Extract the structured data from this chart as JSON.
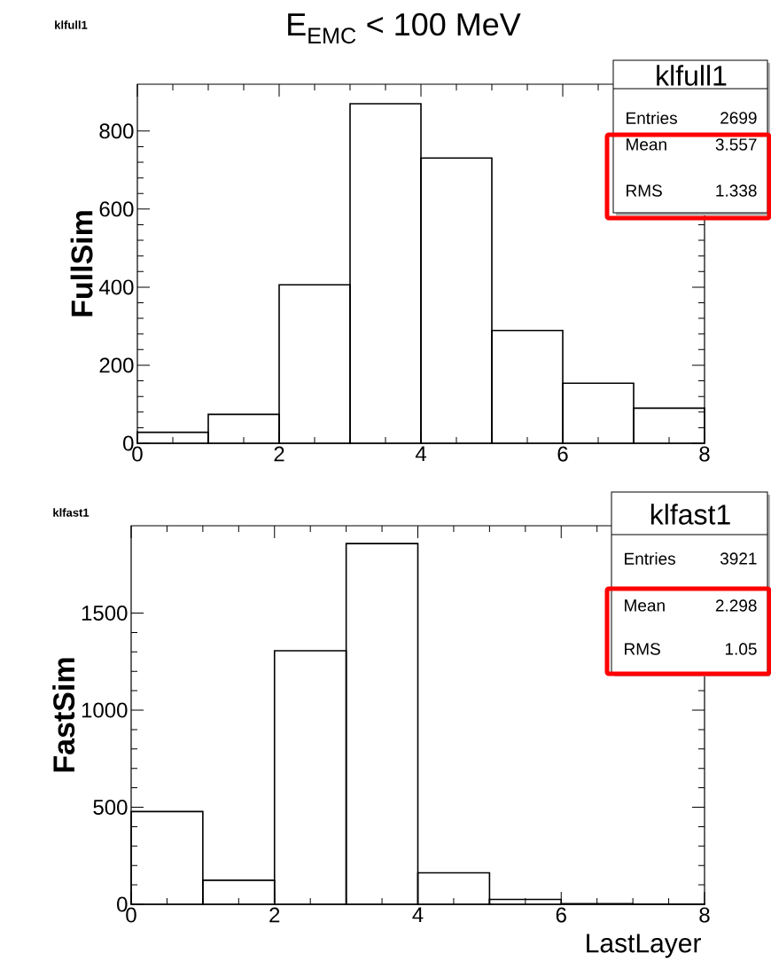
{
  "chart_data": [
    {
      "type": "histogram",
      "title": "E$_{EMC}$ < 100 MeV",
      "ylabel": "FullSim",
      "bins": [
        0,
        1,
        2,
        3,
        4,
        5,
        6,
        7,
        8
      ],
      "values": [
        28,
        74,
        406,
        870,
        731,
        289,
        154,
        90
      ],
      "color": "#000000",
      "xlim": [
        0,
        8
      ],
      "xticks": [
        0,
        2,
        4,
        6,
        8
      ],
      "ylim": [
        0,
        920
      ],
      "yticks": [
        0,
        200,
        400,
        600,
        800
      ],
      "annotations": [
        "klfull1",
        "klfull1",
        "Entries",
        "2699",
        "Mean",
        "3.557",
        "RMS",
        "1.338"
      ]
    },
    {
      "type": "histogram",
      "xlabel": "LastLayer",
      "ylabel": "FastSim",
      "bins": [
        0,
        1,
        2,
        3,
        4,
        5,
        6,
        7,
        8
      ],
      "values": [
        478,
        124,
        1306,
        1858,
        162,
        25,
        3,
        1
      ],
      "color": "#000000",
      "xlim": [
        0,
        8
      ],
      "xticks": [
        0,
        2,
        4,
        6,
        8
      ],
      "ylim": [
        0,
        1950
      ],
      "yticks": [
        0,
        500,
        1000,
        1500
      ],
      "annotations": [
        "klfast1",
        "klfast1",
        "Entries",
        "3921",
        "Mean",
        "2.298",
        "RMS",
        "1.05"
      ]
    }
  ]
}
